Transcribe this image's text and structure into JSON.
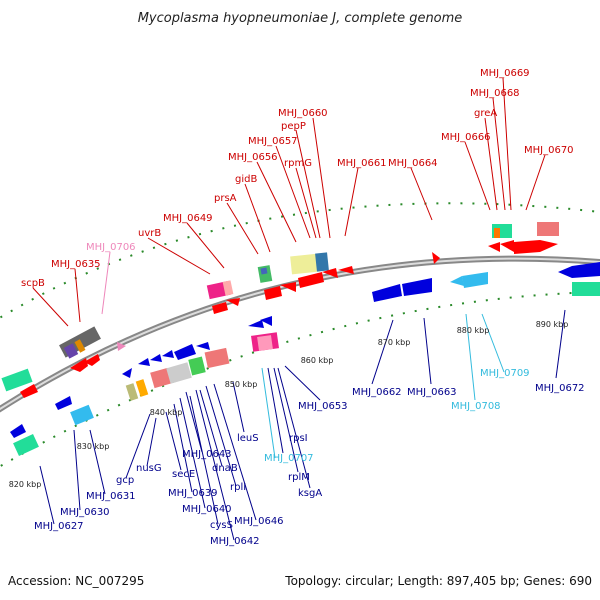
{
  "title": "Mycoplasma hyopneumoniae J, complete genome",
  "footer": {
    "accession": "Accession: NC_007295",
    "summary": "Topology: circular; Length: 897,405 bp; Genes: 690"
  },
  "colors": {
    "forward_label": "#cc0000",
    "reverse_label": "#00008b",
    "pseudo_forward": "#ee88bb",
    "pseudo_reverse": "#33bbdd",
    "backbone": "#999999",
    "dots": "#2a8a2a"
  },
  "scale_ticks": [
    "820 kbp",
    "830 kbp",
    "840 kbp",
    "850 kbp",
    "860 kbp",
    "870 kbp",
    "880 kbp",
    "890 kbp"
  ],
  "forward_labels": [
    "MHJ_0669",
    "MHJ_0668",
    "greA",
    "MHJ_0666",
    "MHJ_0670",
    "MHJ_0660",
    "pepP",
    "MHJ_0657",
    "rpmG",
    "MHJ_0656",
    "MHJ_0661",
    "MHJ_0664",
    "gidB",
    "prsA",
    "MHJ_0649",
    "uvrB",
    "MHJ_0635",
    "scpB"
  ],
  "pseudo_forward_labels": [
    "MHJ_0706"
  ],
  "reverse_labels": [
    "MHJ_0662",
    "MHJ_0663",
    "MHJ_0672",
    "MHJ_0653",
    "leuS",
    "rpsI",
    "rplM",
    "ksgA",
    "nusG",
    "gcp",
    "secE",
    "dnaB",
    "rplI",
    "MHJ_0643",
    "MHJ_0639",
    "MHJ_0640",
    "cysS",
    "MHJ_0646",
    "MHJ_0642",
    "MHJ_0631",
    "MHJ_0630",
    "MHJ_0627"
  ],
  "pseudo_reverse_labels": [
    "MHJ_0707",
    "MHJ_0708",
    "MHJ_0709"
  ]
}
